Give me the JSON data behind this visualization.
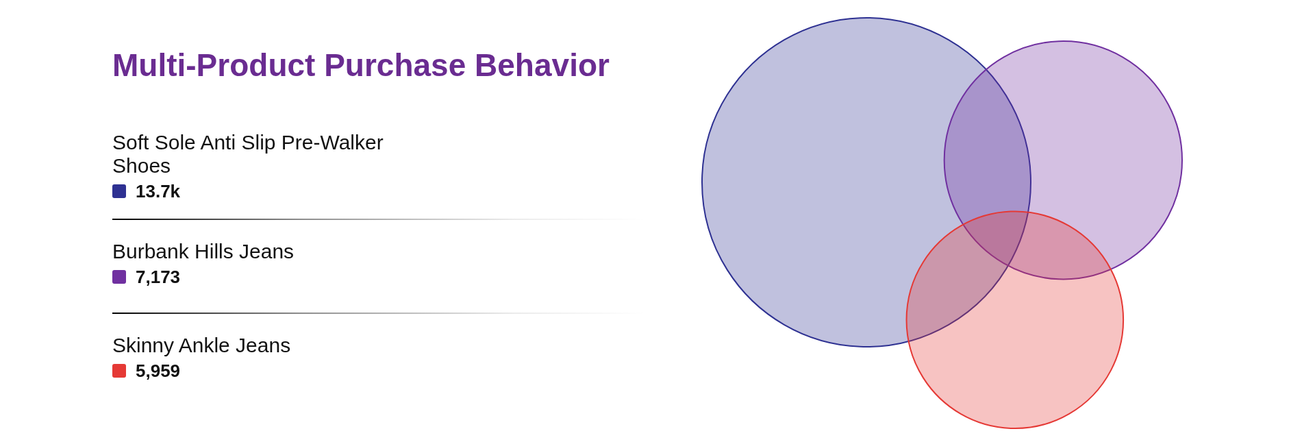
{
  "chart_data": {
    "type": "other",
    "title": "Multi-Product Purchase Behavior",
    "categories": [
      "Soft Sole Anti Slip Pre-Walker Shoes",
      "Burbank Hills Jeans",
      "Skinny Ankle Jeans"
    ],
    "values": [
      13700,
      7173,
      5959
    ],
    "value_labels": [
      "13.7k",
      "7,173",
      "5,959"
    ],
    "colors": [
      "#2e3192",
      "#7030a0",
      "#e53935"
    ]
  }
}
